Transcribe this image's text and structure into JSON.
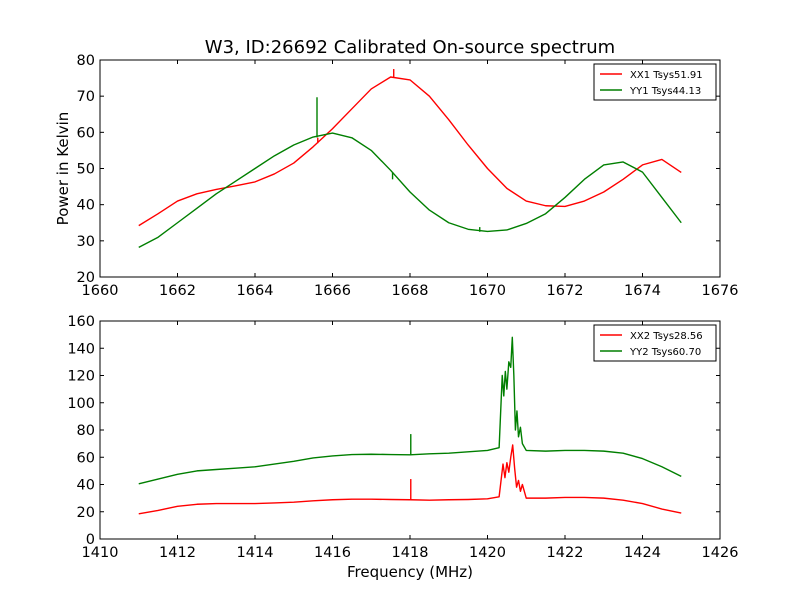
{
  "figure": {
    "title": "W3, ID:26692 Calibrated On-source spectrum",
    "background": "#ffffff"
  },
  "chart_data": [
    {
      "type": "line",
      "xlabel": "",
      "ylabel": "Power in Kelvin",
      "xlim": [
        1660,
        1676
      ],
      "ylim": [
        20,
        80
      ],
      "xticks": [
        "1660",
        "1662",
        "1664",
        "1666",
        "1668",
        "1670",
        "1672",
        "1674",
        "1676"
      ],
      "yticks": [
        "20",
        "30",
        "40",
        "50",
        "60",
        "70",
        "80"
      ],
      "grid": false,
      "legend_position": "top-right",
      "series": [
        {
          "name": "XX1 Tsys51.91",
          "color": "#ff0000",
          "points": [
            [
              1661.0,
              34.2
            ],
            [
              1661.5,
              37.5
            ],
            [
              1662.0,
              41.0
            ],
            [
              1662.5,
              43.0
            ],
            [
              1663.0,
              44.2
            ],
            [
              1663.5,
              45.2
            ],
            [
              1664.0,
              46.3
            ],
            [
              1664.5,
              48.5
            ],
            [
              1665.0,
              51.5
            ],
            [
              1665.5,
              56.0
            ],
            [
              1666.0,
              61.0
            ],
            [
              1666.5,
              66.5
            ],
            [
              1667.0,
              72.0
            ],
            [
              1667.5,
              75.3
            ],
            [
              1668.0,
              74.5
            ],
            [
              1668.5,
              70.0
            ],
            [
              1669.0,
              63.5
            ],
            [
              1669.5,
              56.5
            ],
            [
              1670.0,
              50.0
            ],
            [
              1670.5,
              44.5
            ],
            [
              1671.0,
              41.0
            ],
            [
              1671.5,
              39.7
            ],
            [
              1672.0,
              39.5
            ],
            [
              1672.5,
              41.0
            ],
            [
              1673.0,
              43.5
            ],
            [
              1673.5,
              47.0
            ],
            [
              1674.0,
              51.0
            ],
            [
              1674.5,
              52.5
            ],
            [
              1675.0,
              48.9
            ]
          ],
          "spikes": [
            [
              1665.62,
              57.0,
              58.5
            ],
            [
              1667.58,
              75.3,
              77.5
            ]
          ]
        },
        {
          "name": "YY1 Tsys44.13",
          "color": "#007f00",
          "points": [
            [
              1661.0,
              28.2
            ],
            [
              1661.5,
              31.0
            ],
            [
              1662.0,
              35.0
            ],
            [
              1662.5,
              39.0
            ],
            [
              1663.0,
              43.0
            ],
            [
              1663.5,
              46.5
            ],
            [
              1664.0,
              50.0
            ],
            [
              1664.5,
              53.5
            ],
            [
              1665.0,
              56.5
            ],
            [
              1665.5,
              58.7
            ],
            [
              1666.0,
              59.8
            ],
            [
              1666.5,
              58.5
            ],
            [
              1667.0,
              55.0
            ],
            [
              1667.5,
              49.5
            ],
            [
              1668.0,
              43.5
            ],
            [
              1668.5,
              38.5
            ],
            [
              1669.0,
              35.0
            ],
            [
              1669.5,
              33.2
            ],
            [
              1670.0,
              32.6
            ],
            [
              1670.5,
              33.0
            ],
            [
              1671.0,
              34.8
            ],
            [
              1671.5,
              37.5
            ],
            [
              1672.0,
              42.0
            ],
            [
              1672.5,
              47.0
            ],
            [
              1673.0,
              51.0
            ],
            [
              1673.5,
              51.8
            ],
            [
              1674.0,
              49.0
            ],
            [
              1674.5,
              42.0
            ],
            [
              1675.0,
              35.0
            ]
          ],
          "spikes": [
            [
              1665.6,
              58.6,
              69.7
            ],
            [
              1667.55,
              47.0,
              49.0
            ],
            [
              1669.8,
              32.5,
              33.8
            ]
          ]
        }
      ]
    },
    {
      "type": "line",
      "xlabel": "Frequency (MHz)",
      "ylabel": "",
      "xlim": [
        1410,
        1426
      ],
      "ylim": [
        0,
        160
      ],
      "xticks": [
        "1410",
        "1412",
        "1414",
        "1416",
        "1418",
        "1420",
        "1422",
        "1424",
        "1426"
      ],
      "yticks": [
        "0",
        "20",
        "40",
        "60",
        "80",
        "100",
        "120",
        "140",
        "160"
      ],
      "grid": false,
      "legend_position": "top-right",
      "series": [
        {
          "name": "XX2 Tsys28.56",
          "color": "#ff0000",
          "points": [
            [
              1411.0,
              18.5
            ],
            [
              1411.5,
              21.0
            ],
            [
              1412.0,
              24.0
            ],
            [
              1412.5,
              25.5
            ],
            [
              1413.0,
              26.0
            ],
            [
              1413.5,
              26.0
            ],
            [
              1414.0,
              26.0
            ],
            [
              1414.5,
              26.5
            ],
            [
              1415.0,
              27.0
            ],
            [
              1415.5,
              28.0
            ],
            [
              1416.0,
              28.8
            ],
            [
              1416.5,
              29.2
            ],
            [
              1417.0,
              29.2
            ],
            [
              1417.5,
              29.0
            ],
            [
              1418.0,
              28.8
            ],
            [
              1418.5,
              28.5
            ],
            [
              1419.0,
              28.8
            ],
            [
              1419.5,
              29.0
            ],
            [
              1420.0,
              29.5
            ],
            [
              1420.3,
              31.0
            ],
            [
              1420.4,
              55.0
            ],
            [
              1420.45,
              45.0
            ],
            [
              1420.5,
              56.0
            ],
            [
              1420.55,
              49.0
            ],
            [
              1420.6,
              60.0
            ],
            [
              1420.65,
              69.0
            ],
            [
              1420.7,
              52.0
            ],
            [
              1420.75,
              38.0
            ],
            [
              1420.8,
              43.0
            ],
            [
              1420.85,
              35.0
            ],
            [
              1420.9,
              40.0
            ],
            [
              1421.0,
              30.0
            ],
            [
              1421.5,
              30.0
            ],
            [
              1422.0,
              30.5
            ],
            [
              1422.5,
              30.5
            ],
            [
              1423.0,
              30.0
            ],
            [
              1423.5,
              28.5
            ],
            [
              1424.0,
              26.0
            ],
            [
              1424.5,
              22.0
            ],
            [
              1425.0,
              19.0
            ]
          ],
          "spikes": [
            [
              1418.02,
              28.8,
              44.0
            ]
          ]
        },
        {
          "name": "YY2 Tsys60.70",
          "color": "#007f00",
          "points": [
            [
              1411.0,
              40.5
            ],
            [
              1411.5,
              44.0
            ],
            [
              1412.0,
              47.5
            ],
            [
              1412.5,
              50.0
            ],
            [
              1413.0,
              51.0
            ],
            [
              1413.5,
              52.0
            ],
            [
              1414.0,
              53.0
            ],
            [
              1414.5,
              55.0
            ],
            [
              1415.0,
              57.0
            ],
            [
              1415.5,
              59.5
            ],
            [
              1416.0,
              61.0
            ],
            [
              1416.5,
              62.0
            ],
            [
              1417.0,
              62.2
            ],
            [
              1417.5,
              62.0
            ],
            [
              1418.0,
              61.8
            ],
            [
              1418.5,
              62.5
            ],
            [
              1419.0,
              63.0
            ],
            [
              1419.5,
              64.0
            ],
            [
              1420.0,
              65.0
            ],
            [
              1420.3,
              67.0
            ],
            [
              1420.38,
              120.0
            ],
            [
              1420.42,
              105.0
            ],
            [
              1420.46,
              123.0
            ],
            [
              1420.5,
              110.0
            ],
            [
              1420.55,
              130.0
            ],
            [
              1420.6,
              126.0
            ],
            [
              1420.64,
              148.0
            ],
            [
              1420.68,
              120.0
            ],
            [
              1420.72,
              80.0
            ],
            [
              1420.76,
              94.0
            ],
            [
              1420.8,
              75.0
            ],
            [
              1420.85,
              82.0
            ],
            [
              1420.9,
              70.0
            ],
            [
              1421.0,
              65.0
            ],
            [
              1421.5,
              64.5
            ],
            [
              1422.0,
              65.0
            ],
            [
              1422.5,
              65.0
            ],
            [
              1423.0,
              64.5
            ],
            [
              1423.5,
              63.0
            ],
            [
              1424.0,
              59.0
            ],
            [
              1424.5,
              53.0
            ],
            [
              1425.0,
              46.0
            ]
          ],
          "spikes": [
            [
              1418.02,
              62.0,
              77.0
            ]
          ]
        }
      ]
    }
  ]
}
